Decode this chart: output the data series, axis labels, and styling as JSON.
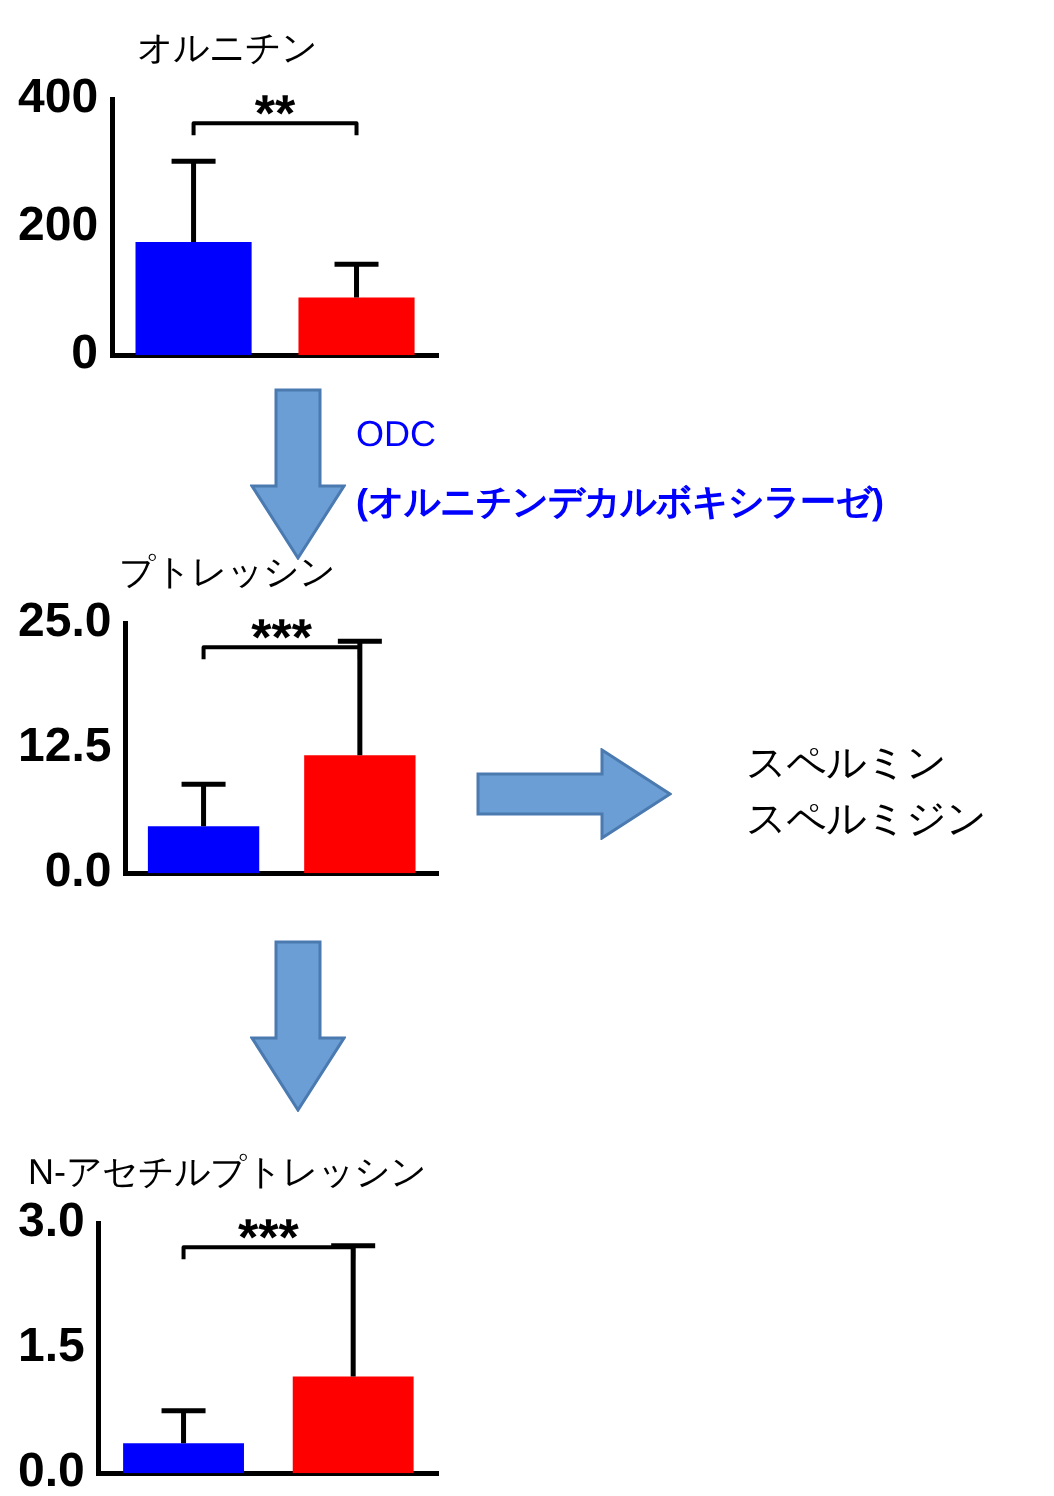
{
  "chart_data": [
    {
      "type": "bar",
      "title": "オルニチン",
      "categories": [
        null,
        null
      ],
      "values": [
        177,
        90
      ],
      "errors": [
        [
          177,
          303
        ],
        [
          90,
          142
        ]
      ],
      "colors": [
        "#0000ff",
        "#ff0000"
      ],
      "ylim": [
        0,
        400
      ],
      "yticks": [
        0,
        200,
        400
      ],
      "grid": false,
      "tick_labels": "y",
      "annotations": [
        "**",
        "ODC",
        "(オルニチンデカルボキシラーゼ)"
      ]
    },
    {
      "type": "bar",
      "title": "プトレッシン",
      "categories": [
        null,
        null
      ],
      "values": [
        4.7,
        11.8
      ],
      "errors": [
        [
          4.7,
          8.9
        ],
        [
          11.8,
          23.2
        ]
      ],
      "colors": [
        "#0000ff",
        "#ff0000"
      ],
      "ylim": [
        0,
        25
      ],
      "yticks": [
        {
          "value": 0,
          "label": "0.0"
        },
        {
          "value": 12.5,
          "label": "12.5"
        },
        {
          "value": 25,
          "label": "25.0"
        }
      ],
      "grid": false,
      "tick_labels": "y",
      "annotations": [
        "***",
        "スペルミン",
        "スペルミジン"
      ]
    },
    {
      "type": "bar",
      "title": "N-アセチルプトレッシン",
      "categories": [
        null,
        null
      ],
      "values": [
        0.36,
        1.16
      ],
      "errors": [
        [
          0.36,
          0.75
        ],
        [
          1.16,
          2.73
        ]
      ],
      "colors": [
        "#0000ff",
        "#ff0000"
      ],
      "ylim": [
        0,
        3
      ],
      "yticks": [
        {
          "value": 0,
          "label": "0.0"
        },
        {
          "value": 1.5,
          "label": "1.5"
        },
        {
          "value": 3,
          "label": "3.0"
        }
      ],
      "grid": false,
      "tick_labels": "y",
      "annotations": [
        "***"
      ]
    }
  ]
}
